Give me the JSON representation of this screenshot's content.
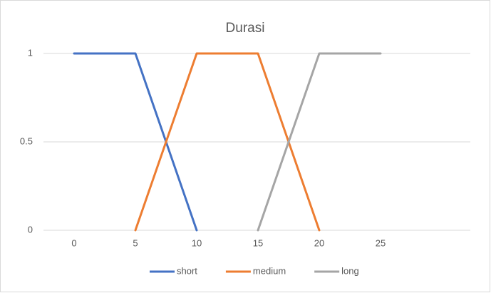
{
  "chart_data": {
    "type": "line",
    "title": "Durasi",
    "categories": [
      0,
      5,
      10,
      15,
      20,
      25,
      null
    ],
    "series": [
      {
        "name": "short",
        "color": "#4472c4",
        "values": [
          1,
          1,
          0,
          null,
          null,
          null,
          null
        ]
      },
      {
        "name": "medium",
        "color": "#ed7d31",
        "values": [
          null,
          0,
          1,
          1,
          0,
          null,
          null
        ]
      },
      {
        "name": "long",
        "color": "#a5a5a5",
        "values": [
          null,
          null,
          null,
          0,
          1,
          1,
          null
        ]
      }
    ],
    "ylim": [
      0,
      1
    ],
    "yticks": [
      0,
      0.5,
      1
    ],
    "grid": true,
    "legend": "bottom"
  }
}
